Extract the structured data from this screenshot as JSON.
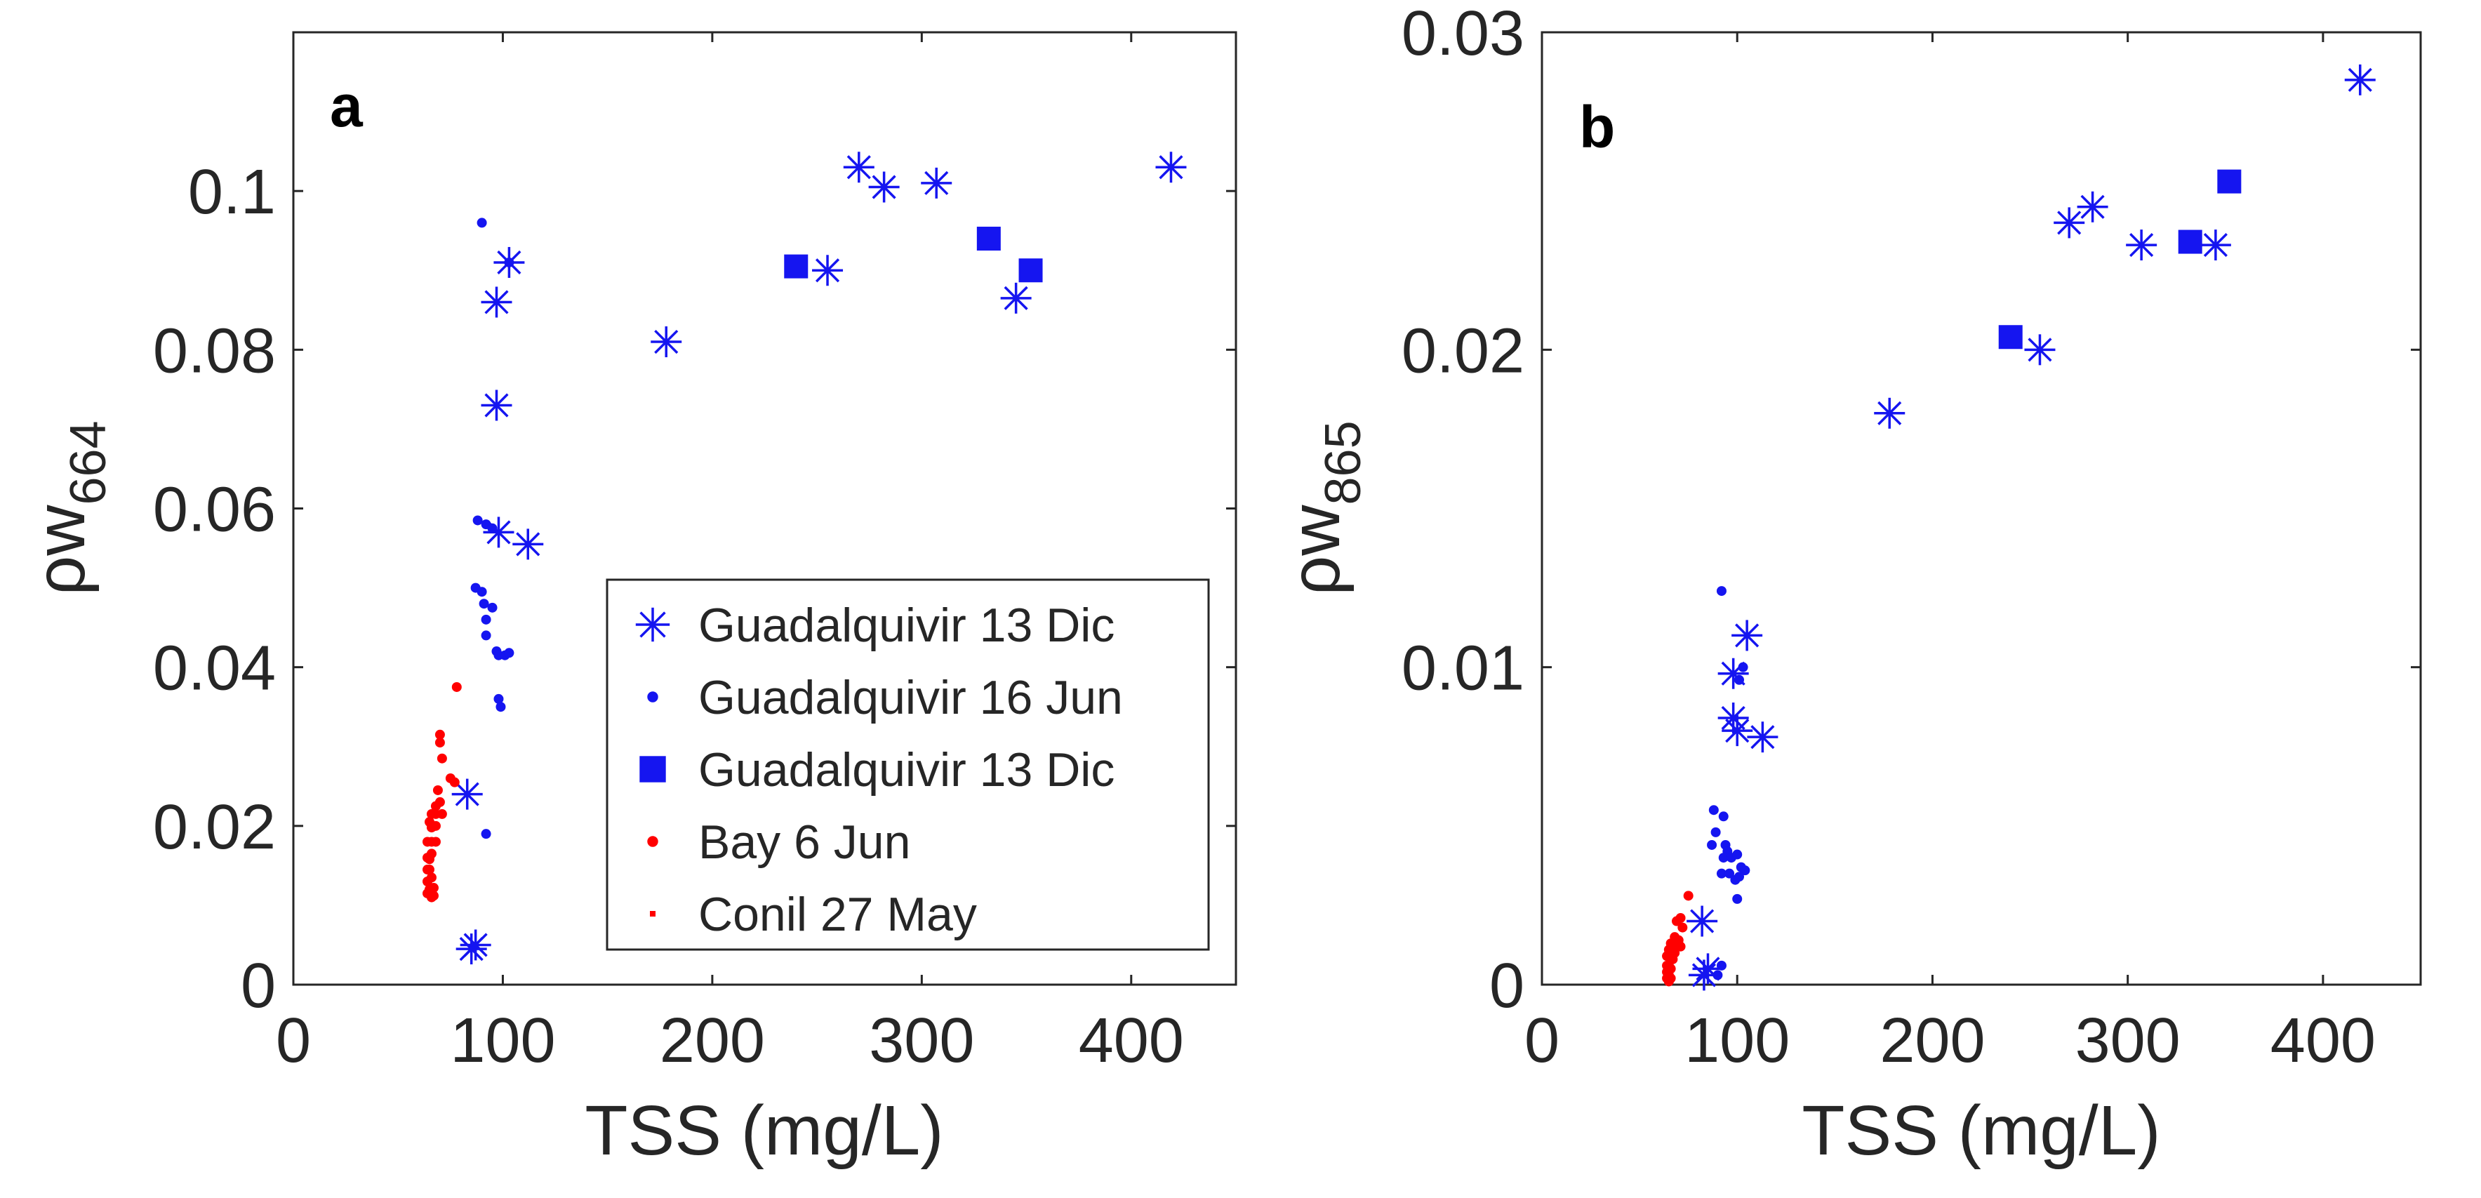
{
  "chart_data": [
    {
      "type": "scatter",
      "panel": "a",
      "xlabel": "TSS (mg/L)",
      "ylabel_main": "ρw",
      "ylabel_sub": "664",
      "xlim": [
        0,
        450
      ],
      "ylim": [
        0,
        0.12
      ],
      "xticks": [
        0,
        100,
        200,
        300,
        400
      ],
      "yticks": [
        0,
        0.02,
        0.04,
        0.06,
        0.08,
        0.1
      ],
      "ytick_labels": [
        "0",
        "0.02",
        "0.04",
        "0.06",
        "0.08",
        "0.1"
      ],
      "legend_position": "bottom-right",
      "series": [
        {
          "name": "Guadalquivir 13 Dic",
          "marker": "asterisk",
          "color": "#1515F0",
          "x": [
            103,
            97,
            97,
            98,
            112,
            83,
            85,
            87,
            178,
            270,
            282,
            307,
            255,
            345,
            419
          ],
          "y": [
            0.091,
            0.086,
            0.073,
            0.057,
            0.0555,
            0.024,
            0.0045,
            0.005,
            0.081,
            0.103,
            0.1005,
            0.101,
            0.09,
            0.0865,
            0.103
          ]
        },
        {
          "name": "Guadalquivir 16 Jun",
          "marker": "dot",
          "color": "#1515F0",
          "x": [
            90,
            103,
            88,
            92,
            95,
            87,
            90,
            91,
            92,
            95,
            92,
            97,
            98,
            101,
            103,
            98,
            99,
            92
          ],
          "y": [
            0.096,
            0.091,
            0.0585,
            0.058,
            0.0575,
            0.05,
            0.0495,
            0.048,
            0.046,
            0.0475,
            0.044,
            0.042,
            0.0415,
            0.0415,
            0.0418,
            0.036,
            0.035,
            0.019
          ]
        },
        {
          "name": "Guadalquivir 13 Dic",
          "marker": "square",
          "color": "#1515F0",
          "x": [
            240,
            332,
            352
          ],
          "y": [
            0.0905,
            0.094,
            0.09
          ]
        },
        {
          "name": "Bay 6 Jun",
          "marker": "dot",
          "color": "#FF0000",
          "x": [
            78,
            70,
            70,
            71,
            75,
            77,
            69,
            70,
            68,
            66,
            68,
            71,
            65,
            66,
            68,
            64,
            66,
            68,
            64,
            65,
            66,
            64,
            65,
            64,
            66,
            65,
            67,
            64,
            67,
            66
          ],
          "y": [
            0.0375,
            0.0315,
            0.0305,
            0.0285,
            0.026,
            0.0255,
            0.0245,
            0.023,
            0.0225,
            0.0215,
            0.0215,
            0.0215,
            0.0205,
            0.0198,
            0.02,
            0.018,
            0.018,
            0.018,
            0.016,
            0.0158,
            0.0165,
            0.0145,
            0.0145,
            0.013,
            0.0135,
            0.012,
            0.0122,
            0.0115,
            0.0112,
            0.011
          ]
        },
        {
          "name": "Conil 27 May",
          "marker": "point",
          "color": "#FF0000",
          "x": [],
          "y": []
        }
      ]
    },
    {
      "type": "scatter",
      "panel": "b",
      "xlabel": "TSS (mg/L)",
      "ylabel_main": "ρw",
      "ylabel_sub": "865",
      "xlim": [
        0,
        450
      ],
      "ylim": [
        0,
        0.03
      ],
      "xticks": [
        0,
        100,
        200,
        300,
        400
      ],
      "yticks": [
        0,
        0.01,
        0.02,
        0.03
      ],
      "ytick_labels": [
        "0",
        "0.01",
        "0.02",
        "0.03"
      ],
      "series": [
        {
          "name": "Guadalquivir 13 Dic",
          "marker": "asterisk",
          "color": "#1515F0",
          "x": [
            105,
            98,
            98,
            100,
            113,
            82,
            83,
            85,
            178,
            270,
            282,
            307,
            255,
            345,
            419
          ],
          "y": [
            0.011,
            0.0098,
            0.0084,
            0.008,
            0.0078,
            0.002,
            0.0003,
            0.0005,
            0.018,
            0.024,
            0.0245,
            0.0233,
            0.02,
            0.0233,
            0.0285
          ]
        },
        {
          "name": "Guadalquivir 16 Jun",
          "marker": "dot",
          "color": "#1515F0",
          "x": [
            92,
            103,
            101,
            88,
            93,
            89,
            87,
            94,
            95,
            93,
            97,
            100,
            102,
            92,
            96,
            99,
            104,
            101,
            100,
            90,
            92
          ],
          "y": [
            0.0124,
            0.01,
            0.0096,
            0.0055,
            0.0053,
            0.0048,
            0.0044,
            0.0044,
            0.0042,
            0.004,
            0.004,
            0.0041,
            0.0037,
            0.0035,
            0.0035,
            0.0033,
            0.0036,
            0.0034,
            0.0027,
            0.0003,
            0.0006
          ]
        },
        {
          "name": "Guadalquivir 13 Dic",
          "marker": "square",
          "color": "#1515F0",
          "x": [
            240,
            332,
            352
          ],
          "y": [
            0.0204,
            0.0234,
            0.0253
          ]
        },
        {
          "name": "Bay 6 Jun",
          "marker": "dot",
          "color": "#FF0000",
          "x": [
            75,
            71,
            69,
            72,
            68,
            70,
            66,
            67,
            69,
            71,
            65,
            66,
            68,
            64,
            66,
            67,
            64,
            65,
            66,
            64,
            65,
            64,
            66,
            65
          ],
          "y": [
            0.0028,
            0.0021,
            0.002,
            0.0018,
            0.0015,
            0.0014,
            0.0013,
            0.0013,
            0.0012,
            0.0012,
            0.0011,
            0.001,
            0.001,
            0.0009,
            0.0008,
            0.0008,
            0.0006,
            0.0006,
            0.0005,
            0.0004,
            0.0003,
            0.0002,
            0.0002,
            0.0001
          ]
        },
        {
          "name": "Conil 27 May",
          "marker": "point",
          "color": "#FF0000",
          "x": [],
          "y": []
        }
      ]
    }
  ]
}
